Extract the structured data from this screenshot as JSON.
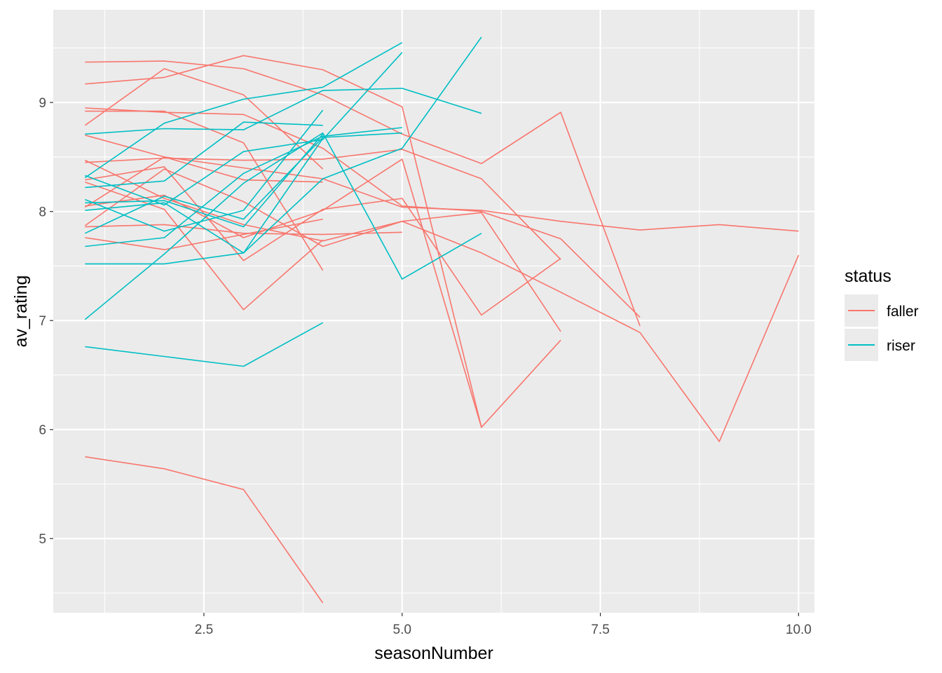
{
  "chart_data": {
    "type": "line",
    "xlabel": "seasonNumber",
    "ylabel": "av_rating",
    "xlim": [
      0.6,
      10.2
    ],
    "ylim": [
      4.32,
      9.85
    ],
    "x_ticks": [
      2.5,
      5.0,
      7.5,
      10.0
    ],
    "x_tick_labels": [
      "2.5",
      "5.0",
      "7.5",
      "10.0"
    ],
    "y_ticks": [
      5,
      6,
      7,
      8,
      9
    ],
    "y_tick_labels": [
      "5",
      "6",
      "7",
      "8",
      "9"
    ],
    "grid": true,
    "background": "#ebebeb",
    "legend": {
      "title": "status",
      "position": "right",
      "entries": [
        {
          "label": "faller",
          "color": "#F8766D"
        },
        {
          "label": "riser",
          "color": "#00BFC4"
        }
      ]
    },
    "series": [
      {
        "group": "faller",
        "x": [
          1,
          2,
          3,
          4
        ],
        "y": [
          5.75,
          5.64,
          5.45,
          4.41
        ]
      },
      {
        "group": "faller",
        "x": [
          1,
          2,
          3,
          4,
          5,
          6,
          7,
          8
        ],
        "y": [
          9.37,
          9.38,
          9.31,
          9.07,
          8.71,
          8.44,
          8.91,
          6.95
        ]
      },
      {
        "group": "faller",
        "x": [
          1,
          2,
          3,
          4,
          5,
          6
        ],
        "y": [
          9.17,
          9.23,
          9.43,
          9.3,
          8.96,
          6.02
        ]
      },
      {
        "group": "faller",
        "x": [
          1,
          2,
          3,
          4
        ],
        "y": [
          8.79,
          9.31,
          9.07,
          8.39
        ]
      },
      {
        "group": "faller",
        "x": [
          1,
          2,
          3,
          4,
          5,
          6,
          7,
          8
        ],
        "y": [
          8.95,
          8.91,
          8.89,
          8.58,
          8.05,
          8.0,
          7.75,
          7.03
        ]
      },
      {
        "group": "faller",
        "x": [
          1,
          2,
          3,
          4
        ],
        "y": [
          8.92,
          8.92,
          8.63,
          7.46
        ]
      },
      {
        "group": "faller",
        "x": [
          1,
          2,
          3,
          4,
          5,
          6,
          7,
          8,
          9,
          10
        ],
        "y": [
          8.7,
          8.5,
          8.4,
          8.3,
          8.04,
          8.01,
          7.91,
          7.83,
          7.88,
          7.82
        ]
      },
      {
        "group": "faller",
        "x": [
          1,
          2,
          3,
          4,
          5,
          6,
          7
        ],
        "y": [
          8.45,
          8.49,
          8.47,
          8.48,
          8.57,
          8.3,
          7.56
        ]
      },
      {
        "group": "faller",
        "x": [
          1,
          2,
          3,
          4
        ],
        "y": [
          8.04,
          8.5,
          8.29,
          8.27
        ]
      },
      {
        "group": "faller",
        "x": [
          1,
          2,
          3,
          4,
          5,
          6,
          7
        ],
        "y": [
          8.29,
          8.41,
          7.55,
          8.02,
          8.12,
          7.05,
          7.57
        ]
      },
      {
        "group": "faller",
        "x": [
          1,
          2,
          3,
          4
        ],
        "y": [
          8.27,
          8.02,
          7.1,
          7.74
        ]
      },
      {
        "group": "faller",
        "x": [
          1,
          2,
          3,
          4,
          5,
          6,
          7,
          8,
          9,
          10
        ],
        "y": [
          8.47,
          8.12,
          7.88,
          7.73,
          7.91,
          7.62,
          7.26,
          6.89,
          5.89,
          7.6
        ]
      },
      {
        "group": "faller",
        "x": [
          1,
          2,
          3,
          4,
          5,
          6,
          7
        ],
        "y": [
          8.05,
          8.15,
          7.76,
          8.01,
          8.48,
          6.02,
          6.82
        ]
      },
      {
        "group": "faller",
        "x": [
          1,
          2,
          3,
          4,
          5,
          6,
          7
        ],
        "y": [
          7.87,
          8.39,
          8.09,
          7.68,
          7.91,
          7.99,
          6.9
        ]
      },
      {
        "group": "faller",
        "x": [
          1,
          2,
          3,
          4
        ],
        "y": [
          7.76,
          7.65,
          7.79,
          7.93
        ]
      },
      {
        "group": "faller",
        "x": [
          1,
          2,
          3,
          4,
          5
        ],
        "y": [
          7.86,
          7.88,
          7.8,
          7.79,
          7.81
        ]
      },
      {
        "group": "riser",
        "x": [
          1,
          2,
          3,
          4
        ],
        "y": [
          6.76,
          6.67,
          6.58,
          6.98
        ]
      },
      {
        "group": "riser",
        "x": [
          1,
          2,
          3,
          4,
          5,
          6
        ],
        "y": [
          7.52,
          7.52,
          7.62,
          8.3,
          8.58,
          9.6
        ]
      },
      {
        "group": "riser",
        "x": [
          1,
          2,
          3,
          4,
          5,
          6
        ],
        "y": [
          7.01,
          7.61,
          8.26,
          8.72,
          7.38,
          7.8
        ]
      },
      {
        "group": "riser",
        "x": [
          1,
          2,
          3,
          4,
          5,
          6
        ],
        "y": [
          8.71,
          8.76,
          8.75,
          9.11,
          9.13,
          8.9
        ]
      },
      {
        "group": "riser",
        "x": [
          1,
          2,
          3,
          4,
          5
        ],
        "y": [
          8.31,
          8.81,
          9.03,
          9.14,
          9.55
        ]
      },
      {
        "group": "riser",
        "x": [
          1,
          2,
          3,
          4,
          5
        ],
        "y": [
          8.33,
          8.06,
          8.55,
          8.66,
          9.46
        ]
      },
      {
        "group": "riser",
        "x": [
          1,
          2,
          3,
          4
        ],
        "y": [
          8.22,
          8.28,
          8.82,
          8.79
        ]
      },
      {
        "group": "riser",
        "x": [
          1,
          2,
          3,
          4
        ],
        "y": [
          8.11,
          7.82,
          8.01,
          8.93
        ]
      },
      {
        "group": "riser",
        "x": [
          1,
          2,
          3,
          4
        ],
        "y": [
          8.01,
          8.08,
          7.62,
          8.67
        ]
      },
      {
        "group": "riser",
        "x": [
          1,
          2,
          3,
          4,
          5
        ],
        "y": [
          7.8,
          8.14,
          7.93,
          8.68,
          8.72
        ]
      },
      {
        "group": "riser",
        "x": [
          1,
          2,
          3,
          4,
          5
        ],
        "y": [
          7.68,
          7.76,
          8.35,
          8.69,
          8.77
        ]
      },
      {
        "group": "riser",
        "x": [
          1,
          2,
          3,
          4
        ],
        "y": [
          8.08,
          8.1,
          7.86,
          8.71
        ]
      }
    ]
  }
}
